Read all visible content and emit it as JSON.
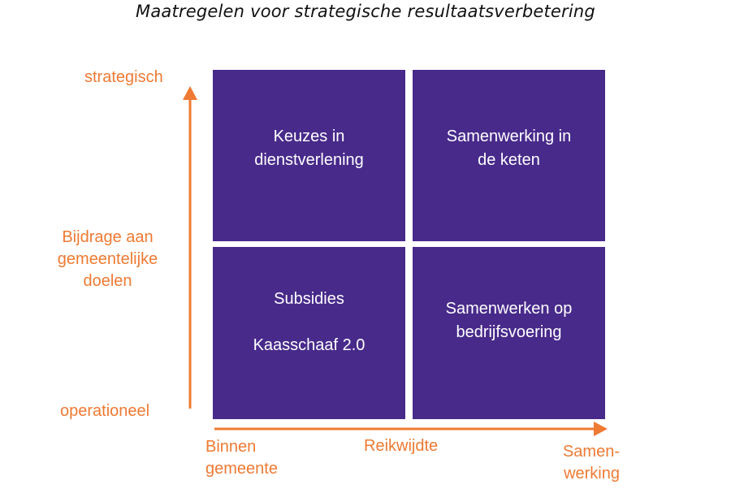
{
  "title": "Maatregelen voor strategische resultaatsverbetering",
  "quadrants": {
    "top_left": [
      "Keuzes in",
      "dienstverlening"
    ],
    "top_right": [
      "Samenwerking in",
      "de keten"
    ],
    "bottom_left": [
      "Subsidies",
      "Kaasschaaf 2.0"
    ],
    "bottom_right": [
      "Samenwerken op",
      "bedrijfsvoering"
    ]
  },
  "y_axis": {
    "top": "strategisch",
    "label": [
      "Bijdrage aan",
      "gemeentelijke",
      "doelen"
    ],
    "bottom": "operationeel"
  },
  "x_axis": {
    "left": [
      "Binnen",
      "gemeente"
    ],
    "label": "Reikwijdte",
    "right": [
      "Samen-",
      "werking"
    ]
  },
  "colors": {
    "quadrant_fill": "#482a8b",
    "quadrant_text": "#ffffff",
    "axis_and_labels": "#ee7a33",
    "title_text": "#111111"
  }
}
